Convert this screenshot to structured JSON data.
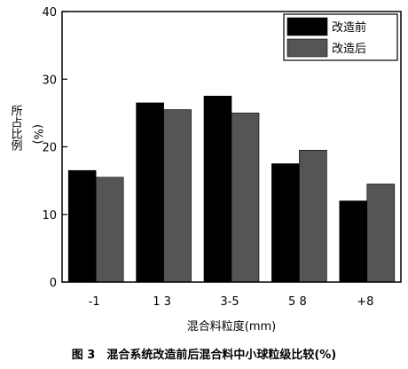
{
  "caption": "图 3　混合系统改造前后混合料中小球粒级比较(%)",
  "chart_data": {
    "type": "bar",
    "categories": [
      "-1",
      "1 3",
      "3-5",
      "5 8",
      "+8"
    ],
    "series": [
      {
        "name": "改造前",
        "values": [
          16.5,
          26.5,
          27.5,
          17.5,
          12
        ],
        "color": "#000000"
      },
      {
        "name": "改造后",
        "values": [
          15.5,
          25.5,
          25,
          19.5,
          14.5
        ],
        "color": "#555555"
      }
    ],
    "title": "",
    "xlabel": "混合料粒度(mm)",
    "ylabel_line1": "所占比例",
    "ylabel_line2": "(%)",
    "ylim": [
      0,
      40
    ],
    "yticks": [
      "0",
      "10",
      "20",
      "30",
      "40"
    ],
    "grid": false,
    "legend_position": "top-right"
  }
}
